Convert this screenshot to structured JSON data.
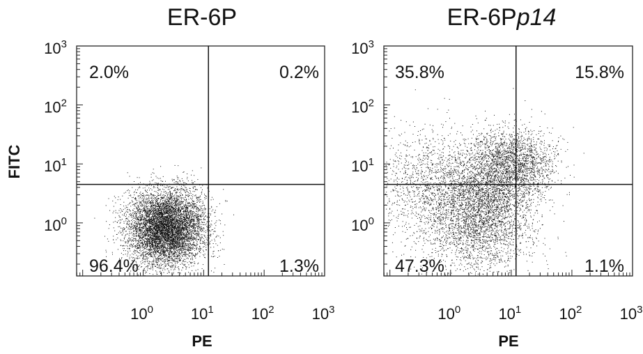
{
  "chart_data": [
    {
      "type": "scatter",
      "title": "ER-6P",
      "title_italic_suffix": "",
      "xlabel": "PE",
      "ylabel": "FITC",
      "x_scale": "log",
      "y_scale": "log",
      "xlim_log10": [
        -1.1,
        3.0
      ],
      "ylim_log10": [
        -0.9,
        3.0
      ],
      "x_ticks": [
        {
          "base": "10",
          "exp": "0",
          "v": 0
        },
        {
          "base": "10",
          "exp": "1",
          "v": 1
        },
        {
          "base": "10",
          "exp": "2",
          "v": 2
        },
        {
          "base": "10",
          "exp": "3",
          "v": 3
        }
      ],
      "y_ticks": [
        {
          "base": "10",
          "exp": "0",
          "v": 0
        },
        {
          "base": "10",
          "exp": "1",
          "v": 1
        },
        {
          "base": "10",
          "exp": "2",
          "v": 2
        },
        {
          "base": "10",
          "exp": "3",
          "v": 3
        }
      ],
      "gate": {
        "x": 12,
        "y": 4.5
      },
      "quadrants": {
        "upper_left": "2.0%",
        "upper_right": "0.2%",
        "lower_left": "96.4%",
        "lower_right": "1.3%"
      },
      "point_count": 7000,
      "clusters": [
        {
          "center_log10": [
            0.38,
            -0.08
          ],
          "spread_log10": [
            0.32,
            0.32
          ],
          "weight": 1.0
        }
      ]
    },
    {
      "type": "scatter",
      "title": "ER-6P",
      "title_italic_suffix": "p14",
      "xlabel": "PE",
      "ylabel": "",
      "x_scale": "log",
      "y_scale": "log",
      "xlim_log10": [
        -1.1,
        3.0
      ],
      "ylim_log10": [
        -0.9,
        3.0
      ],
      "x_ticks": [
        {
          "base": "10",
          "exp": "0",
          "v": 0
        },
        {
          "base": "10",
          "exp": "1",
          "v": 1
        },
        {
          "base": "10",
          "exp": "2",
          "v": 2
        },
        {
          "base": "10",
          "exp": "3",
          "v": 3
        }
      ],
      "y_ticks": [
        {
          "base": "10",
          "exp": "0",
          "v": 0
        },
        {
          "base": "10",
          "exp": "1",
          "v": 1
        },
        {
          "base": "10",
          "exp": "2",
          "v": 2
        },
        {
          "base": "10",
          "exp": "3",
          "v": 3
        }
      ],
      "gate": {
        "x": 12,
        "y": 4.5
      },
      "quadrants": {
        "upper_left": "35.8%",
        "upper_right": "15.8%",
        "lower_left": "47.3%",
        "lower_right": "1.1%"
      },
      "point_count": 7000,
      "clusters": [
        {
          "center_log10": [
            0.45,
            0.2
          ],
          "spread_log10": [
            0.45,
            0.5
          ],
          "weight": 0.55
        },
        {
          "center_log10": [
            1.0,
            1.0
          ],
          "spread_log10": [
            0.35,
            0.3
          ],
          "weight": 0.3
        },
        {
          "center_log10": [
            -0.4,
            0.7
          ],
          "spread_log10": [
            0.45,
            0.45
          ],
          "weight": 0.15
        }
      ]
    }
  ]
}
